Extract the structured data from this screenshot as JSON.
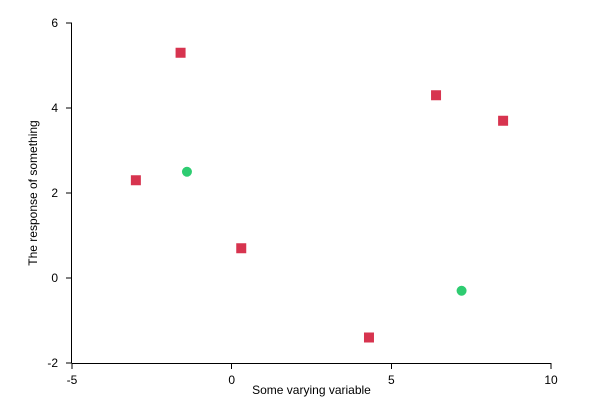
{
  "chart_data": {
    "type": "scatter",
    "xlabel": "Some varying variable",
    "ylabel": "The response of something",
    "xlim": [
      -5,
      10
    ],
    "ylim": [
      -2,
      6
    ],
    "xticks": [
      -5,
      0,
      5,
      10
    ],
    "yticks": [
      -2,
      0,
      2,
      4,
      6
    ],
    "grid": false,
    "series": [
      {
        "marker": "square",
        "color": "#D7344F",
        "points": [
          {
            "x": -1.6,
            "y": 5.3
          },
          {
            "x": -3.0,
            "y": 2.3
          },
          {
            "x": 0.3,
            "y": 0.7
          },
          {
            "x": 4.3,
            "y": -1.4
          },
          {
            "x": 6.4,
            "y": 4.3
          },
          {
            "x": 8.5,
            "y": 3.7
          }
        ]
      },
      {
        "marker": "circle",
        "color": "#2ECC71",
        "points": [
          {
            "x": -1.4,
            "y": 2.5
          },
          {
            "x": 7.2,
            "y": -0.3
          }
        ]
      }
    ]
  }
}
